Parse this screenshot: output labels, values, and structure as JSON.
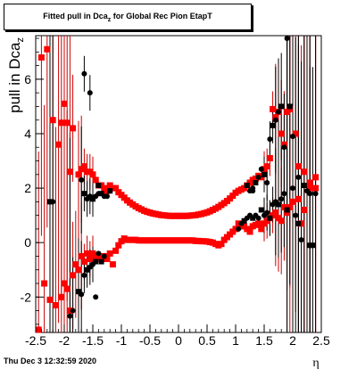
{
  "title": {
    "main": "Fitted pull in Dca",
    "sub": "z",
    "rest": " for Global Rec Pion EtapT"
  },
  "footer": {
    "date": "Thu Dec  3 12:32:59 2020"
  },
  "colors": {
    "red": "#ff0000",
    "black": "#000000",
    "errbar_red": "#cc0000"
  },
  "chart_data": {
    "type": "scatter",
    "xlabel": "η",
    "ylabel": "pull in Dca",
    "ylabel_sub": "z",
    "xlim": [
      -2.5,
      2.5
    ],
    "ylim": [
      -3.3,
      7.6
    ],
    "x_ticks": [
      "-2.5",
      "-2",
      "-1.5",
      "-1",
      "-0.5",
      "0",
      "0.5",
      "1",
      "1.5",
      "2",
      "2.5"
    ],
    "y_ticks": [
      "-2",
      "0",
      "2",
      "4",
      "6"
    ],
    "series": [
      {
        "color": "red",
        "points": [
          [
            -2.45,
            -3.2
          ],
          [
            -2.35,
            -1.5
          ],
          [
            -2.25,
            -2.1
          ],
          [
            -2.15,
            -2.3
          ],
          [
            -2.05,
            -2.0
          ],
          [
            -2.0,
            -1.5
          ],
          [
            -1.95,
            -1.7
          ],
          [
            -1.9,
            -2.5
          ],
          [
            -1.85,
            -1.2
          ],
          [
            -1.8,
            -0.8
          ],
          [
            -1.75,
            -1.0
          ],
          [
            -1.7,
            -0.5
          ],
          [
            -1.65,
            -0.7
          ],
          [
            -1.6,
            -0.4
          ],
          [
            -1.55,
            -0.6
          ],
          [
            -1.5,
            -0.4
          ],
          [
            -1.45,
            -0.6
          ],
          [
            -1.4,
            -0.5
          ],
          [
            -1.35,
            -0.5
          ],
          [
            -1.3,
            -0.5
          ],
          [
            -1.25,
            -0.6
          ],
          [
            -1.2,
            -0.4
          ],
          [
            -1.15,
            -0.8
          ],
          [
            -1.1,
            -0.3
          ],
          [
            -1.05,
            -0.1
          ],
          [
            -1.0,
            0.05
          ],
          [
            -0.95,
            0.15
          ],
          [
            -0.9,
            0.1
          ],
          [
            -0.85,
            0.1
          ],
          [
            -0.8,
            0.1
          ],
          [
            -0.75,
            0.1
          ],
          [
            -0.7,
            0.08
          ],
          [
            -0.65,
            0.08
          ],
          [
            -0.6,
            0.08
          ],
          [
            -0.55,
            0.08
          ],
          [
            -0.5,
            0.08
          ],
          [
            -0.45,
            0.08
          ],
          [
            -0.4,
            0.08
          ],
          [
            -0.35,
            0.08
          ],
          [
            -0.3,
            0.08
          ],
          [
            -0.25,
            0.08
          ],
          [
            -0.2,
            0.08
          ],
          [
            -0.15,
            0.08
          ],
          [
            -0.1,
            0.08
          ],
          [
            -0.05,
            0.08
          ],
          [
            0.0,
            0.08
          ],
          [
            0.05,
            0.08
          ],
          [
            0.1,
            0.08
          ],
          [
            0.15,
            0.08
          ],
          [
            0.2,
            0.08
          ],
          [
            0.25,
            0.08
          ],
          [
            0.3,
            0.06
          ],
          [
            0.35,
            0.06
          ],
          [
            0.4,
            0.05
          ],
          [
            0.45,
            0.05
          ],
          [
            0.5,
            0.04
          ],
          [
            0.55,
            0.02
          ],
          [
            0.6,
            0.0
          ],
          [
            0.65,
            -0.05
          ],
          [
            0.7,
            -0.1
          ],
          [
            0.75,
            -0.05
          ],
          [
            0.8,
            0.1
          ],
          [
            0.85,
            0.2
          ],
          [
            0.9,
            0.3
          ],
          [
            0.95,
            0.4
          ],
          [
            1.0,
            0.5
          ],
          [
            1.05,
            0.7
          ],
          [
            1.1,
            0.6
          ],
          [
            1.15,
            0.6
          ],
          [
            1.2,
            0.5
          ],
          [
            1.25,
            0.4
          ],
          [
            1.3,
            0.6
          ],
          [
            1.35,
            0.65
          ],
          [
            1.4,
            0.7
          ],
          [
            1.45,
            0.5
          ],
          [
            1.5,
            0.7
          ],
          [
            1.55,
            0.8
          ],
          [
            1.6,
            0.9
          ],
          [
            1.65,
            1.0
          ],
          [
            1.7,
            1.1
          ],
          [
            1.75,
            0.9
          ],
          [
            1.8,
            0.8
          ],
          [
            1.85,
            1.3
          ],
          [
            1.9,
            1.1
          ],
          [
            1.95,
            1.3
          ],
          [
            2.0,
            1.5
          ],
          [
            2.1,
            1.6
          ],
          [
            2.15,
            0.7
          ],
          [
            2.2,
            1.2
          ],
          [
            2.3,
            2.0
          ],
          [
            2.4,
            2.4
          ],
          [
            -2.4,
            6.8
          ],
          [
            -2.3,
            7.1
          ],
          [
            -2.2,
            4.5
          ],
          [
            -2.1,
            3.6
          ],
          [
            -2.05,
            4.4
          ],
          [
            -2.0,
            5.1
          ],
          [
            -1.95,
            4.4
          ],
          [
            -1.9,
            2.6
          ],
          [
            -1.85,
            4.2
          ],
          [
            -1.75,
            2.5
          ],
          [
            -1.7,
            2.7
          ],
          [
            -1.65,
            2.8
          ],
          [
            -1.6,
            2.6
          ],
          [
            -1.55,
            2.6
          ],
          [
            -1.5,
            2.5
          ],
          [
            -1.45,
            2.3
          ],
          [
            -1.4,
            2.1
          ],
          [
            -1.35,
            2.1
          ],
          [
            -1.3,
            2.0
          ],
          [
            -1.25,
            1.9
          ],
          [
            -1.2,
            2.1
          ],
          [
            -1.15,
            2.0
          ],
          [
            -1.1,
            2.0
          ],
          [
            -1.05,
            1.85
          ],
          [
            -1.0,
            1.75
          ],
          [
            -0.95,
            1.65
          ],
          [
            -0.9,
            1.55
          ],
          [
            -0.85,
            1.47
          ],
          [
            -0.8,
            1.4
          ],
          [
            -0.75,
            1.33
          ],
          [
            -0.7,
            1.27
          ],
          [
            -0.65,
            1.22
          ],
          [
            -0.6,
            1.17
          ],
          [
            -0.55,
            1.13
          ],
          [
            -0.5,
            1.1
          ],
          [
            -0.45,
            1.07
          ],
          [
            -0.4,
            1.05
          ],
          [
            -0.35,
            1.03
          ],
          [
            -0.3,
            1.01
          ],
          [
            -0.25,
            1.0
          ],
          [
            -0.2,
            0.99
          ],
          [
            -0.15,
            0.98
          ],
          [
            -0.1,
            0.98
          ],
          [
            -0.05,
            0.98
          ],
          [
            0.0,
            0.98
          ],
          [
            0.05,
            0.98
          ],
          [
            0.1,
            0.98
          ],
          [
            0.15,
            0.98
          ],
          [
            0.2,
            0.99
          ],
          [
            0.25,
            1.0
          ],
          [
            0.3,
            1.01
          ],
          [
            0.35,
            1.03
          ],
          [
            0.4,
            1.05
          ],
          [
            0.45,
            1.08
          ],
          [
            0.5,
            1.11
          ],
          [
            0.55,
            1.15
          ],
          [
            0.6,
            1.2
          ],
          [
            0.65,
            1.25
          ],
          [
            0.7,
            1.31
          ],
          [
            0.75,
            1.38
          ],
          [
            0.8,
            1.45
          ],
          [
            0.85,
            1.53
          ],
          [
            0.9,
            1.62
          ],
          [
            0.95,
            1.72
          ],
          [
            1.0,
            1.83
          ],
          [
            1.05,
            1.9
          ],
          [
            1.1,
            1.95
          ],
          [
            1.15,
            2.0
          ],
          [
            1.2,
            2.1
          ],
          [
            1.25,
            2.2
          ],
          [
            1.3,
            2.3
          ],
          [
            1.35,
            2.35
          ],
          [
            1.4,
            2.45
          ],
          [
            1.45,
            2.4
          ],
          [
            1.5,
            2.7
          ],
          [
            1.55,
            2.8
          ],
          [
            1.6,
            3.1
          ],
          [
            1.65,
            4.9
          ],
          [
            1.7,
            4.6
          ],
          [
            1.75,
            4.8
          ],
          [
            1.8,
            4.0
          ],
          [
            1.85,
            3.6
          ],
          [
            1.9,
            4.8
          ],
          [
            1.95,
            4.9
          ],
          [
            2.05,
            4.0
          ],
          [
            2.1,
            2.8
          ],
          [
            2.2,
            2.6
          ],
          [
            2.3,
            2.2
          ],
          [
            2.4,
            2.0
          ]
        ]
      },
      {
        "color": "black",
        "points": [
          [
            -2.25,
            1.5
          ],
          [
            -1.9,
            -2.7
          ],
          [
            -1.85,
            -2.5
          ],
          [
            -1.75,
            -1.8
          ],
          [
            -1.7,
            -1.9
          ],
          [
            -1.65,
            -1.2
          ],
          [
            -1.6,
            -1.0
          ],
          [
            -1.55,
            -0.9
          ],
          [
            -1.5,
            -0.8
          ],
          [
            -1.45,
            -0.7
          ],
          [
            -1.45,
            -2.0
          ],
          [
            -1.4,
            -0.4
          ],
          [
            -1.35,
            -0.7
          ],
          [
            -1.3,
            -0.5
          ],
          [
            -1.7,
            2.3
          ],
          [
            -1.65,
            1.8
          ],
          [
            -1.6,
            1.6
          ],
          [
            -1.55,
            1.7
          ],
          [
            -1.5,
            1.6
          ],
          [
            -1.45,
            1.7
          ],
          [
            -1.4,
            1.8
          ],
          [
            -1.35,
            1.8
          ],
          [
            -1.3,
            1.7
          ],
          [
            -1.25,
            1.7
          ],
          [
            -1.2,
            1.9
          ],
          [
            -1.65,
            6.2
          ],
          [
            -1.55,
            5.5
          ],
          [
            -1.4,
            2.1
          ],
          [
            1.05,
            0.5
          ],
          [
            1.1,
            0.7
          ],
          [
            1.15,
            0.8
          ],
          [
            1.2,
            0.9
          ],
          [
            1.25,
            1.0
          ],
          [
            1.3,
            0.9
          ],
          [
            1.35,
            1.0
          ],
          [
            1.4,
            0.9
          ],
          [
            1.45,
            1.2
          ],
          [
            1.5,
            1.0
          ],
          [
            1.55,
            1.1
          ],
          [
            1.6,
            0.9
          ],
          [
            1.65,
            1.4
          ],
          [
            1.7,
            1.5
          ],
          [
            1.75,
            1.4
          ],
          [
            1.8,
            1.6
          ],
          [
            1.85,
            1.8
          ],
          [
            1.9,
            1.2
          ],
          [
            2.0,
            2.0
          ],
          [
            2.05,
            1.0
          ],
          [
            2.1,
            0.7
          ],
          [
            2.15,
            0.1
          ],
          [
            2.25,
            1.9
          ],
          [
            2.3,
            -0.1
          ],
          [
            2.4,
            1.8
          ],
          [
            1.3,
            1.9
          ],
          [
            1.35,
            2.2
          ],
          [
            1.4,
            2.4
          ],
          [
            1.45,
            2.7
          ],
          [
            1.5,
            2.5
          ],
          [
            1.55,
            2.2
          ],
          [
            1.6,
            3.8
          ],
          [
            1.65,
            4.3
          ],
          [
            1.7,
            4.5
          ],
          [
            1.75,
            4.8
          ],
          [
            1.8,
            5.0
          ],
          [
            1.85,
            3.5
          ],
          [
            1.9,
            7.5
          ],
          [
            1.95,
            5.0
          ],
          [
            2.0,
            3.9
          ],
          [
            2.1,
            2.4
          ],
          [
            2.2,
            2.1
          ],
          [
            1.3,
            2.0
          ],
          [
            1.25,
            1.9
          ],
          [
            1.2,
            2.1
          ],
          [
            -2.2,
            1.5
          ],
          [
            2.3,
            1.8
          ],
          [
            2.35,
            -0.1
          ]
        ]
      }
    ]
  }
}
